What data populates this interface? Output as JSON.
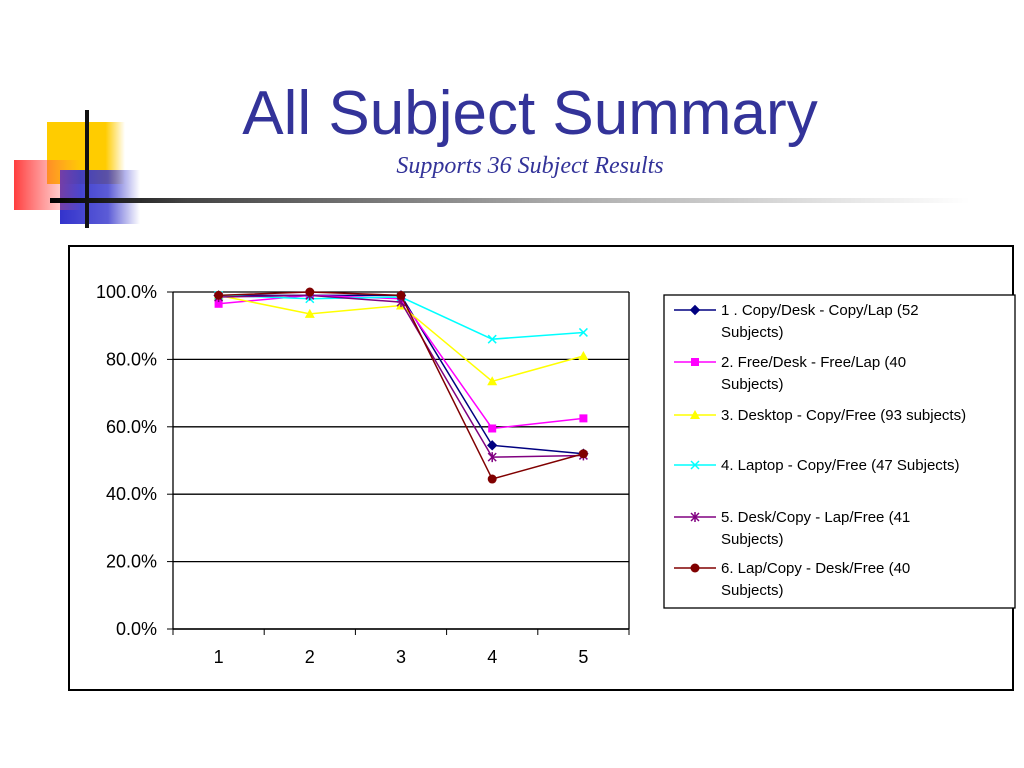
{
  "slide": {
    "title": "All Subject Summary",
    "subtitle": "Supports 36 Subject Results"
  },
  "chart_data": {
    "type": "line",
    "categories": [
      "1",
      "2",
      "3",
      "4",
      "5"
    ],
    "ylim": [
      0,
      1
    ],
    "yticks": [
      "0.0%",
      "20.0%",
      "40.0%",
      "60.0%",
      "80.0%",
      "100.0%"
    ],
    "grid": true,
    "legend_position": "right",
    "series": [
      {
        "name": "1 .  Copy/Desk - Copy/Lap (52 Subjects)",
        "legend_lines": [
          "1 .  Copy/Desk - Copy/Lap (52",
          "Subjects)"
        ],
        "color": "#000080",
        "marker": "diamond",
        "values": [
          0.99,
          0.99,
          0.99,
          0.545,
          0.52
        ]
      },
      {
        "name": "2.  Free/Desk - Free/Lap (40 Subjects)",
        "legend_lines": [
          "2.  Free/Desk - Free/Lap (40",
          "Subjects)"
        ],
        "color": "#ff00ff",
        "marker": "square",
        "values": [
          0.965,
          0.99,
          0.98,
          0.595,
          0.625
        ]
      },
      {
        "name": "3. Desktop - Copy/Free (93 subjects)",
        "legend_lines": [
          "3. Desktop - Copy/Free (93 subjects)"
        ],
        "color": "#ffff00",
        "marker": "triangle",
        "values": [
          0.99,
          0.935,
          0.96,
          0.735,
          0.81
        ]
      },
      {
        "name": " 4. Laptop - Copy/Free (47 Subjects)",
        "legend_lines": [
          " 4. Laptop - Copy/Free (47 Subjects)"
        ],
        "color": "#00ffff",
        "marker": "x",
        "values": [
          0.99,
          0.98,
          0.985,
          0.86,
          0.88
        ]
      },
      {
        "name": "5. Desk/Copy - Lap/Free (41 Subjects)",
        "legend_lines": [
          "5. Desk/Copy - Lap/Free (41",
          "Subjects)"
        ],
        "color": "#800080",
        "marker": "star",
        "values": [
          0.985,
          0.99,
          0.97,
          0.51,
          0.515
        ]
      },
      {
        "name": "6. Lap/Copy - Desk/Free (40 Subjects)",
        "legend_lines": [
          "6. Lap/Copy - Desk/Free (40",
          "Subjects)"
        ],
        "color": "#800000",
        "marker": "circle",
        "values": [
          0.99,
          1.0,
          0.99,
          0.445,
          0.52
        ]
      }
    ]
  }
}
